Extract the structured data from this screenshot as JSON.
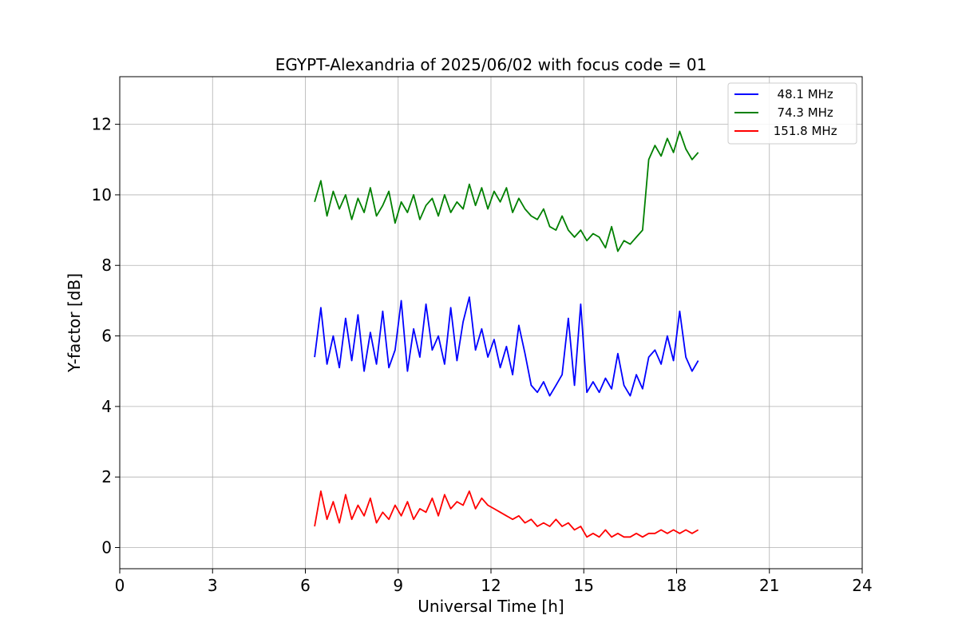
{
  "chart_data": {
    "type": "line",
    "title": "EGYPT-Alexandria of 2025/06/02 with focus code = 01",
    "xlabel": "Universal Time [h]",
    "ylabel": "Y-factor [dB]",
    "xlim": [
      0,
      24
    ],
    "ylim": [
      -0.6,
      13.35
    ],
    "xticks": [
      0,
      3,
      6,
      9,
      12,
      15,
      18,
      21,
      24
    ],
    "yticks": [
      0,
      2,
      4,
      6,
      8,
      10,
      12
    ],
    "grid": true,
    "legend_position": "top-right",
    "series": [
      {
        "name": "  48.1 MHz",
        "color": "#0000ff",
        "x": [
          6.3,
          6.5,
          6.7,
          6.9,
          7.1,
          7.3,
          7.5,
          7.7,
          7.9,
          8.1,
          8.3,
          8.5,
          8.7,
          8.9,
          9.1,
          9.3,
          9.5,
          9.7,
          9.9,
          10.1,
          10.3,
          10.5,
          10.7,
          10.9,
          11.1,
          11.3,
          11.5,
          11.7,
          11.9,
          12.1,
          12.3,
          12.5,
          12.7,
          12.9,
          13.1,
          13.3,
          13.5,
          13.7,
          13.9,
          14.1,
          14.3,
          14.5,
          14.7,
          14.9,
          15.1,
          15.3,
          15.5,
          15.7,
          15.9,
          16.1,
          16.3,
          16.5,
          16.7,
          16.9,
          17.1,
          17.3,
          17.5,
          17.7,
          17.9,
          18.1,
          18.3,
          18.5,
          18.7
        ],
        "y": [
          5.4,
          6.8,
          5.2,
          6.0,
          5.1,
          6.5,
          5.3,
          6.6,
          5.0,
          6.1,
          5.2,
          6.7,
          5.1,
          5.6,
          7.0,
          5.0,
          6.2,
          5.4,
          6.9,
          5.6,
          6.0,
          5.2,
          6.8,
          5.3,
          6.4,
          7.1,
          5.6,
          6.2,
          5.4,
          5.9,
          5.1,
          5.7,
          4.9,
          6.3,
          5.5,
          4.6,
          4.4,
          4.7,
          4.3,
          4.6,
          4.9,
          6.5,
          4.6,
          6.9,
          4.4,
          4.7,
          4.4,
          4.8,
          4.5,
          5.5,
          4.6,
          4.3,
          4.9,
          4.5,
          5.4,
          5.6,
          5.2,
          6.0,
          5.3,
          6.7,
          5.4,
          5.0,
          5.3
        ]
      },
      {
        "name": "  74.3 MHz",
        "color": "#008000",
        "x": [
          6.3,
          6.5,
          6.7,
          6.9,
          7.1,
          7.3,
          7.5,
          7.7,
          7.9,
          8.1,
          8.3,
          8.5,
          8.7,
          8.9,
          9.1,
          9.3,
          9.5,
          9.7,
          9.9,
          10.1,
          10.3,
          10.5,
          10.7,
          10.9,
          11.1,
          11.3,
          11.5,
          11.7,
          11.9,
          12.1,
          12.3,
          12.5,
          12.7,
          12.9,
          13.1,
          13.3,
          13.5,
          13.7,
          13.9,
          14.1,
          14.3,
          14.5,
          14.7,
          14.9,
          15.1,
          15.3,
          15.5,
          15.7,
          15.9,
          16.1,
          16.3,
          16.5,
          16.7,
          16.9,
          17.1,
          17.3,
          17.5,
          17.7,
          17.9,
          18.1,
          18.3,
          18.5,
          18.7
        ],
        "y": [
          9.8,
          10.4,
          9.4,
          10.1,
          9.6,
          10.0,
          9.3,
          9.9,
          9.5,
          10.2,
          9.4,
          9.7,
          10.1,
          9.2,
          9.8,
          9.5,
          10.0,
          9.3,
          9.7,
          9.9,
          9.4,
          10.0,
          9.5,
          9.8,
          9.6,
          10.3,
          9.7,
          10.2,
          9.6,
          10.1,
          9.8,
          10.2,
          9.5,
          9.9,
          9.6,
          9.4,
          9.3,
          9.6,
          9.1,
          9.0,
          9.4,
          9.0,
          8.8,
          9.0,
          8.7,
          8.9,
          8.8,
          8.5,
          9.1,
          8.4,
          8.7,
          8.6,
          8.8,
          9.0,
          11.0,
          11.4,
          11.1,
          11.6,
          11.2,
          11.8,
          11.3,
          11.0,
          11.2
        ]
      },
      {
        "name": " 151.8 MHz",
        "color": "#ff0000",
        "x": [
          6.3,
          6.5,
          6.7,
          6.9,
          7.1,
          7.3,
          7.5,
          7.7,
          7.9,
          8.1,
          8.3,
          8.5,
          8.7,
          8.9,
          9.1,
          9.3,
          9.5,
          9.7,
          9.9,
          10.1,
          10.3,
          10.5,
          10.7,
          10.9,
          11.1,
          11.3,
          11.5,
          11.7,
          11.9,
          12.1,
          12.3,
          12.5,
          12.7,
          12.9,
          13.1,
          13.3,
          13.5,
          13.7,
          13.9,
          14.1,
          14.3,
          14.5,
          14.7,
          14.9,
          15.1,
          15.3,
          15.5,
          15.7,
          15.9,
          16.1,
          16.3,
          16.5,
          16.7,
          16.9,
          17.1,
          17.3,
          17.5,
          17.7,
          17.9,
          18.1,
          18.3,
          18.5,
          18.7
        ],
        "y": [
          0.6,
          1.6,
          0.8,
          1.3,
          0.7,
          1.5,
          0.8,
          1.2,
          0.9,
          1.4,
          0.7,
          1.0,
          0.8,
          1.2,
          0.9,
          1.3,
          0.8,
          1.1,
          1.0,
          1.4,
          0.9,
          1.5,
          1.1,
          1.3,
          1.2,
          1.6,
          1.1,
          1.4,
          1.2,
          1.1,
          1.0,
          0.9,
          0.8,
          0.9,
          0.7,
          0.8,
          0.6,
          0.7,
          0.6,
          0.8,
          0.6,
          0.7,
          0.5,
          0.6,
          0.3,
          0.4,
          0.3,
          0.5,
          0.3,
          0.4,
          0.3,
          0.3,
          0.4,
          0.3,
          0.4,
          0.4,
          0.5,
          0.4,
          0.5,
          0.4,
          0.5,
          0.4,
          0.5
        ]
      }
    ]
  }
}
